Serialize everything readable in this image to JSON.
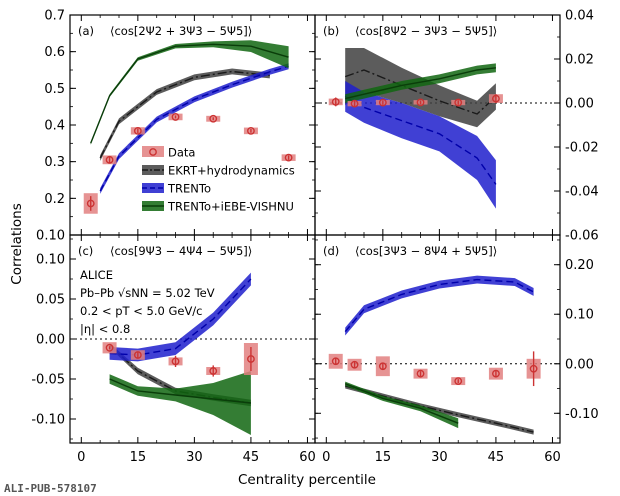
{
  "figure": {
    "ylabel": "Correlations",
    "xlabel": "Centrality percentile",
    "watermark": "ALI-PUB-578107"
  },
  "colors": {
    "data": "#cc3333",
    "data_box": "#e28080",
    "ekrt": "#404040",
    "trento": "#1f1fcc",
    "trento_ebe": "#116611"
  },
  "legend": [
    {
      "key": "data",
      "label": "Data"
    },
    {
      "key": "ekrt",
      "label": "EKRT+hydrodynamics"
    },
    {
      "key": "trento",
      "label": "TRENTo"
    },
    {
      "key": "trento_ebe",
      "label": "TRENTo+iEBE-VISHNU"
    }
  ],
  "alice": {
    "line1": "ALICE",
    "line2": "Pb–Pb √sNN = 5.02 TeV",
    "line3": "0.2 < pT < 5.0 GeV/c",
    "line4": "|η| < 0.8"
  },
  "chart_data": [
    {
      "type": "line",
      "panel": "(a)",
      "title": "⟨cos[2Ψ2 + 3Ψ3 − 5Ψ5]⟩",
      "axis_side": "left",
      "ylim": [
        0.1,
        0.7
      ],
      "yticks": [
        0.1,
        0.2,
        0.3,
        0.4,
        0.5,
        0.6,
        0.7
      ],
      "xlim": [
        -3,
        62
      ],
      "xticks": [
        0,
        15,
        30,
        45,
        60
      ],
      "zero_line": false,
      "data": {
        "x": [
          2.5,
          7.5,
          15,
          25,
          35,
          45,
          55
        ],
        "y": [
          0.186,
          0.305,
          0.384,
          0.422,
          0.417,
          0.384,
          0.311
        ],
        "err": [
          0.02,
          0.01,
          0.006,
          0.004,
          0.004,
          0.005,
          0.006
        ],
        "syst": [
          0.028,
          0.012,
          0.01,
          0.009,
          0.008,
          0.009,
          0.009
        ]
      },
      "series": [
        {
          "key": "ekrt",
          "style": "dashdot",
          "x": [
            5,
            10,
            20,
            30,
            40,
            50
          ],
          "y": [
            0.31,
            0.41,
            0.49,
            0.53,
            0.546,
            0.535
          ],
          "band": [
            0.008,
            0.008,
            0.008,
            0.008,
            0.008,
            0.008
          ]
        },
        {
          "key": "trento",
          "style": "dashed",
          "x": [
            5,
            10,
            20,
            30,
            40,
            50,
            55
          ],
          "y": [
            0.22,
            0.315,
            0.415,
            0.47,
            0.51,
            0.545,
            0.56
          ],
          "band": [
            0.008,
            0.008,
            0.008,
            0.008,
            0.008,
            0.008,
            0.008
          ]
        },
        {
          "key": "trento_ebe",
          "style": "solid",
          "x": [
            2.5,
            7.5,
            15,
            25,
            35,
            45,
            55
          ],
          "y": [
            0.35,
            0.48,
            0.58,
            0.615,
            0.62,
            0.615,
            0.585
          ],
          "band": [
            0.004,
            0.004,
            0.005,
            0.006,
            0.008,
            0.016,
            0.03
          ]
        }
      ]
    },
    {
      "type": "line",
      "panel": "(b)",
      "title": "⟨cos[8Ψ2 − 3Ψ3 − 5Ψ5]⟩",
      "axis_side": "right",
      "ylim": [
        -0.06,
        0.04
      ],
      "yticks": [
        -0.06,
        -0.04,
        -0.02,
        0.0,
        0.02,
        0.04
      ],
      "xlim": [
        -3,
        62
      ],
      "xticks": [
        0,
        15,
        30,
        45,
        60
      ],
      "zero_line": true,
      "data": {
        "x": [
          2.5,
          7.5,
          15,
          25,
          35,
          45
        ],
        "y": [
          0.0005,
          -0.0003,
          0.0002,
          0.0003,
          0.0002,
          0.002
        ],
        "err": [
          0.002,
          0.0015,
          0.001,
          0.0008,
          0.001,
          0.002
        ],
        "syst": [
          0.0015,
          0.0012,
          0.0012,
          0.001,
          0.0012,
          0.002
        ]
      },
      "series": [
        {
          "key": "ekrt",
          "style": "dashdot",
          "x": [
            5,
            10,
            20,
            30,
            40,
            45
          ],
          "y": [
            0.012,
            0.015,
            0.008,
            0.001,
            -0.005,
            0.003
          ],
          "band": [
            0.013,
            0.01,
            0.008,
            0.007,
            0.006,
            0.006
          ]
        },
        {
          "key": "trento",
          "style": "dashed",
          "x": [
            5,
            10,
            20,
            30,
            40,
            45
          ],
          "y": [
            0.003,
            -0.002,
            -0.008,
            -0.014,
            -0.025,
            -0.037
          ],
          "band": [
            0.007,
            0.007,
            0.008,
            0.008,
            0.01,
            0.011
          ]
        },
        {
          "key": "trento_ebe",
          "style": "solid",
          "x": [
            5,
            10,
            20,
            30,
            40,
            45
          ],
          "y": [
            0.002,
            0.004,
            0.008,
            0.011,
            0.015,
            0.016
          ],
          "band": [
            0.002,
            0.002,
            0.002,
            0.002,
            0.002,
            0.002
          ]
        }
      ]
    },
    {
      "type": "line",
      "panel": "(c)",
      "title": "⟨cos[9Ψ3 − 4Ψ4 − 5Ψ5]⟩",
      "axis_side": "left",
      "ylim": [
        -0.13,
        0.13
      ],
      "yticks": [
        -0.1,
        -0.05,
        0.0,
        0.05,
        0.1
      ],
      "xlim": [
        -3,
        62
      ],
      "xticks": [
        0,
        15,
        30,
        45,
        60
      ],
      "zero_line": true,
      "data": {
        "x": [
          7.5,
          15,
          25,
          35,
          45
        ],
        "y": [
          -0.011,
          -0.02,
          -0.028,
          -0.04,
          -0.025
        ],
        "err": [
          0.002,
          0.004,
          0.007,
          0.007,
          0.015
        ],
        "syst": [
          0.007,
          0.006,
          0.005,
          0.005,
          0.02
        ]
      },
      "series": [
        {
          "key": "ekrt",
          "style": "dashdot",
          "x": [
            7.5,
            15,
            25,
            35,
            45
          ],
          "y": [
            -0.008,
            -0.04,
            -0.065,
            -0.073,
            -0.08
          ],
          "band": [
            0.003,
            0.004,
            0.004,
            0.004,
            0.004
          ]
        },
        {
          "key": "trento",
          "style": "dashed",
          "x": [
            7.5,
            15,
            25,
            35,
            45
          ],
          "y": [
            -0.018,
            -0.02,
            -0.012,
            0.025,
            0.075
          ],
          "band": [
            0.008,
            0.008,
            0.008,
            0.008,
            0.008
          ]
        },
        {
          "key": "trento_ebe",
          "style": "solid",
          "x": [
            7.5,
            15,
            25,
            35,
            45
          ],
          "y": [
            -0.05,
            -0.065,
            -0.07,
            -0.075,
            -0.08
          ],
          "band": [
            0.006,
            0.006,
            0.008,
            0.02,
            0.04
          ]
        }
      ]
    },
    {
      "type": "line",
      "panel": "(d)",
      "title": "⟨cos[3Ψ3 − 8Ψ4 + 5Ψ5]⟩",
      "axis_side": "right",
      "ylim": [
        -0.16,
        0.26
      ],
      "yticks": [
        -0.1,
        0.0,
        0.1,
        0.2
      ],
      "xlim": [
        -3,
        62
      ],
      "xticks": [
        0,
        15,
        30,
        45,
        60
      ],
      "zero_line": true,
      "data": {
        "x": [
          2.5,
          7.5,
          15,
          25,
          35,
          45,
          55
        ],
        "y": [
          0.005,
          -0.002,
          -0.005,
          -0.02,
          -0.035,
          -0.02,
          -0.01
        ],
        "err": [
          0.006,
          0.006,
          0.006,
          0.005,
          0.004,
          0.006,
          0.035
        ],
        "syst": [
          0.015,
          0.012,
          0.02,
          0.01,
          0.008,
          0.012,
          0.02
        ]
      },
      "series": [
        {
          "key": "ekrt",
          "style": "dashdot",
          "x": [
            5,
            15,
            25,
            35,
            45,
            55
          ],
          "y": [
            -0.045,
            -0.065,
            -0.085,
            -0.103,
            -0.12,
            -0.138
          ],
          "band": [
            0.005,
            0.005,
            0.005,
            0.005,
            0.005,
            0.005
          ]
        },
        {
          "key": "trento",
          "style": "dashed",
          "x": [
            5,
            10,
            20,
            30,
            40,
            50,
            55
          ],
          "y": [
            0.065,
            0.11,
            0.14,
            0.16,
            0.17,
            0.165,
            0.145
          ],
          "band": [
            0.008,
            0.008,
            0.008,
            0.008,
            0.008,
            0.008,
            0.008
          ]
        },
        {
          "key": "trento_ebe",
          "style": "solid",
          "x": [
            5,
            15,
            25,
            35
          ],
          "y": [
            -0.04,
            -0.07,
            -0.09,
            -0.12
          ],
          "band": [
            0.004,
            0.005,
            0.006,
            0.01
          ]
        }
      ]
    }
  ]
}
